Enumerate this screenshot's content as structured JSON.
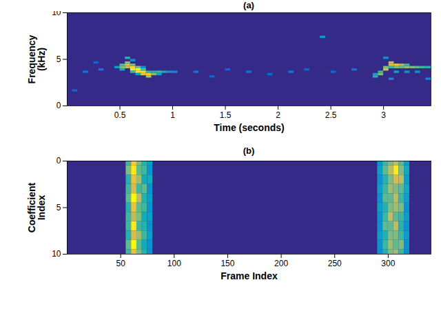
{
  "chart_data": [
    {
      "type": "heatmap",
      "title": "(a)",
      "x_label": "Time (seconds)",
      "y_label": "Frequency (kHz)",
      "xlim": [
        0,
        3.45
      ],
      "xticks": [
        0.5,
        1,
        1.5,
        2,
        2.5,
        3
      ],
      "ylim": [
        0,
        10
      ],
      "yticks": [
        0,
        5,
        10
      ],
      "colors": [
        "#352a87",
        "#0363e1",
        "#1485d4",
        "#06a7c6",
        "#38b99e",
        "#92bf73",
        "#d9ba56",
        "#fcce2e",
        "#f9fb0e"
      ],
      "clim": [
        0,
        1
      ],
      "cell_width": 0.05,
      "cell_height": 0.25,
      "cells": [
        [
          0.45,
          4.0,
          0.35
        ],
        [
          0.5,
          4.0,
          0.6
        ],
        [
          0.5,
          4.25,
          0.55
        ],
        [
          0.5,
          3.75,
          0.4
        ],
        [
          0.55,
          4.25,
          0.8
        ],
        [
          0.55,
          4.5,
          0.6
        ],
        [
          0.55,
          5.0,
          0.45
        ],
        [
          0.55,
          4.0,
          0.7
        ],
        [
          0.6,
          4.0,
          0.9
        ],
        [
          0.6,
          3.75,
          0.95
        ],
        [
          0.6,
          4.25,
          0.6
        ],
        [
          0.6,
          3.5,
          0.5
        ],
        [
          0.65,
          3.75,
          1.0
        ],
        [
          0.65,
          3.5,
          0.95
        ],
        [
          0.65,
          4.0,
          0.6
        ],
        [
          0.7,
          3.5,
          0.95
        ],
        [
          0.7,
          3.25,
          0.8
        ],
        [
          0.7,
          3.75,
          0.55
        ],
        [
          0.75,
          3.25,
          0.85
        ],
        [
          0.75,
          3.0,
          0.7
        ],
        [
          0.75,
          3.5,
          0.5
        ],
        [
          0.8,
          3.25,
          0.6
        ],
        [
          0.8,
          3.5,
          0.45
        ],
        [
          0.85,
          3.5,
          0.5
        ],
        [
          0.85,
          3.25,
          0.35
        ],
        [
          0.9,
          3.5,
          0.4
        ],
        [
          0.95,
          3.5,
          0.3
        ],
        [
          1.0,
          3.5,
          0.25
        ],
        [
          0.6,
          4.75,
          0.3
        ],
        [
          0.65,
          3.25,
          0.35
        ],
        [
          0.7,
          4.0,
          0.3
        ],
        [
          0.15,
          3.5,
          0.2
        ],
        [
          0.3,
          3.75,
          0.2
        ],
        [
          0.05,
          1.5,
          0.15
        ],
        [
          1.2,
          3.5,
          0.2
        ],
        [
          1.5,
          3.75,
          0.15
        ],
        [
          1.7,
          3.5,
          0.2
        ],
        [
          1.9,
          3.25,
          0.15
        ],
        [
          2.1,
          3.5,
          0.2
        ],
        [
          2.4,
          7.25,
          0.35
        ],
        [
          2.5,
          3.5,
          0.15
        ],
        [
          2.7,
          3.75,
          0.2
        ],
        [
          0.25,
          4.5,
          0.15
        ],
        [
          1.35,
          3.0,
          0.15
        ],
        [
          2.25,
          3.75,
          0.15
        ],
        [
          2.9,
          3.0,
          0.45
        ],
        [
          2.9,
          3.25,
          0.35
        ],
        [
          2.95,
          3.25,
          0.6
        ],
        [
          2.95,
          3.5,
          0.5
        ],
        [
          3.0,
          3.75,
          0.75
        ],
        [
          3.0,
          4.0,
          0.6
        ],
        [
          3.05,
          4.25,
          0.8
        ],
        [
          3.05,
          4.5,
          0.7
        ],
        [
          3.05,
          4.0,
          0.5
        ],
        [
          3.1,
          4.25,
          0.85
        ],
        [
          3.1,
          4.0,
          0.6
        ],
        [
          3.15,
          4.25,
          0.7
        ],
        [
          3.15,
          4.0,
          0.55
        ],
        [
          3.2,
          4.0,
          0.65
        ],
        [
          3.2,
          4.25,
          0.5
        ],
        [
          3.25,
          4.0,
          0.6
        ],
        [
          3.3,
          4.0,
          0.55
        ],
        [
          3.35,
          4.0,
          0.5
        ],
        [
          3.4,
          4.0,
          0.45
        ],
        [
          3.1,
          3.5,
          0.35
        ],
        [
          3.2,
          3.5,
          0.3
        ],
        [
          3.3,
          3.5,
          0.3
        ],
        [
          3.4,
          2.75,
          0.25
        ],
        [
          3.0,
          5.0,
          0.3
        ],
        [
          3.05,
          2.75,
          0.25
        ]
      ]
    },
    {
      "type": "heatmap",
      "title": "(b)",
      "x_label": "Frame Index",
      "y_label": "Coefficient Index",
      "xlim": [
        0,
        340
      ],
      "xticks": [
        50,
        100,
        150,
        200,
        250,
        300
      ],
      "ylim": [
        10,
        0
      ],
      "yticks": [
        0,
        5,
        10
      ],
      "colors": [
        "#352a87",
        "#0363e1",
        "#1485d4",
        "#06a7c6",
        "#38b99e",
        "#92bf73",
        "#d9ba56",
        "#fcce2e",
        "#f9fb0e"
      ],
      "clim": [
        0,
        1
      ],
      "cell_width": 5,
      "cell_height": 1,
      "frames": [
        55,
        60,
        65,
        70,
        75,
        290,
        295,
        300,
        305,
        310,
        315
      ],
      "coefficients": [
        0,
        1,
        2,
        3,
        4,
        5,
        6,
        7,
        8,
        9,
        10
      ],
      "values": [
        [
          0.5,
          0.6,
          0.45,
          0.5,
          0.55,
          0.45,
          0.5,
          0.5,
          0.45,
          0.55,
          0.5
        ],
        [
          0.85,
          0.95,
          0.8,
          0.75,
          1.0,
          0.8,
          0.7,
          0.95,
          0.75,
          1.0,
          0.8
        ],
        [
          0.6,
          0.55,
          0.65,
          0.5,
          0.7,
          0.55,
          0.6,
          0.5,
          0.65,
          0.55,
          0.6
        ],
        [
          0.45,
          0.5,
          0.4,
          0.55,
          0.45,
          0.5,
          0.4,
          0.45,
          0.5,
          0.4,
          0.45
        ],
        [
          0.35,
          0.3,
          0.4,
          0.3,
          0.35,
          0.3,
          0.35,
          0.3,
          0.35,
          0.3,
          0.3
        ],
        [
          0.3,
          0.35,
          0.3,
          0.35,
          0.3,
          0.35,
          0.3,
          0.3,
          0.35,
          0.3,
          0.3
        ],
        [
          0.5,
          0.55,
          0.45,
          0.5,
          0.55,
          0.45,
          0.5,
          0.55,
          0.45,
          0.5,
          0.45
        ],
        [
          0.6,
          0.7,
          0.6,
          0.65,
          0.55,
          0.6,
          0.7,
          0.55,
          0.6,
          0.65,
          0.6
        ],
        [
          0.7,
          0.95,
          0.75,
          0.6,
          0.7,
          0.65,
          0.55,
          0.7,
          0.6,
          0.55,
          0.65
        ],
        [
          0.55,
          0.6,
          0.7,
          0.55,
          0.5,
          0.6,
          0.5,
          0.45,
          0.5,
          0.6,
          0.5
        ],
        [
          0.35,
          0.4,
          0.35,
          0.4,
          0.35,
          0.3,
          0.35,
          0.3,
          0.35,
          0.3,
          0.3
        ]
      ]
    }
  ]
}
